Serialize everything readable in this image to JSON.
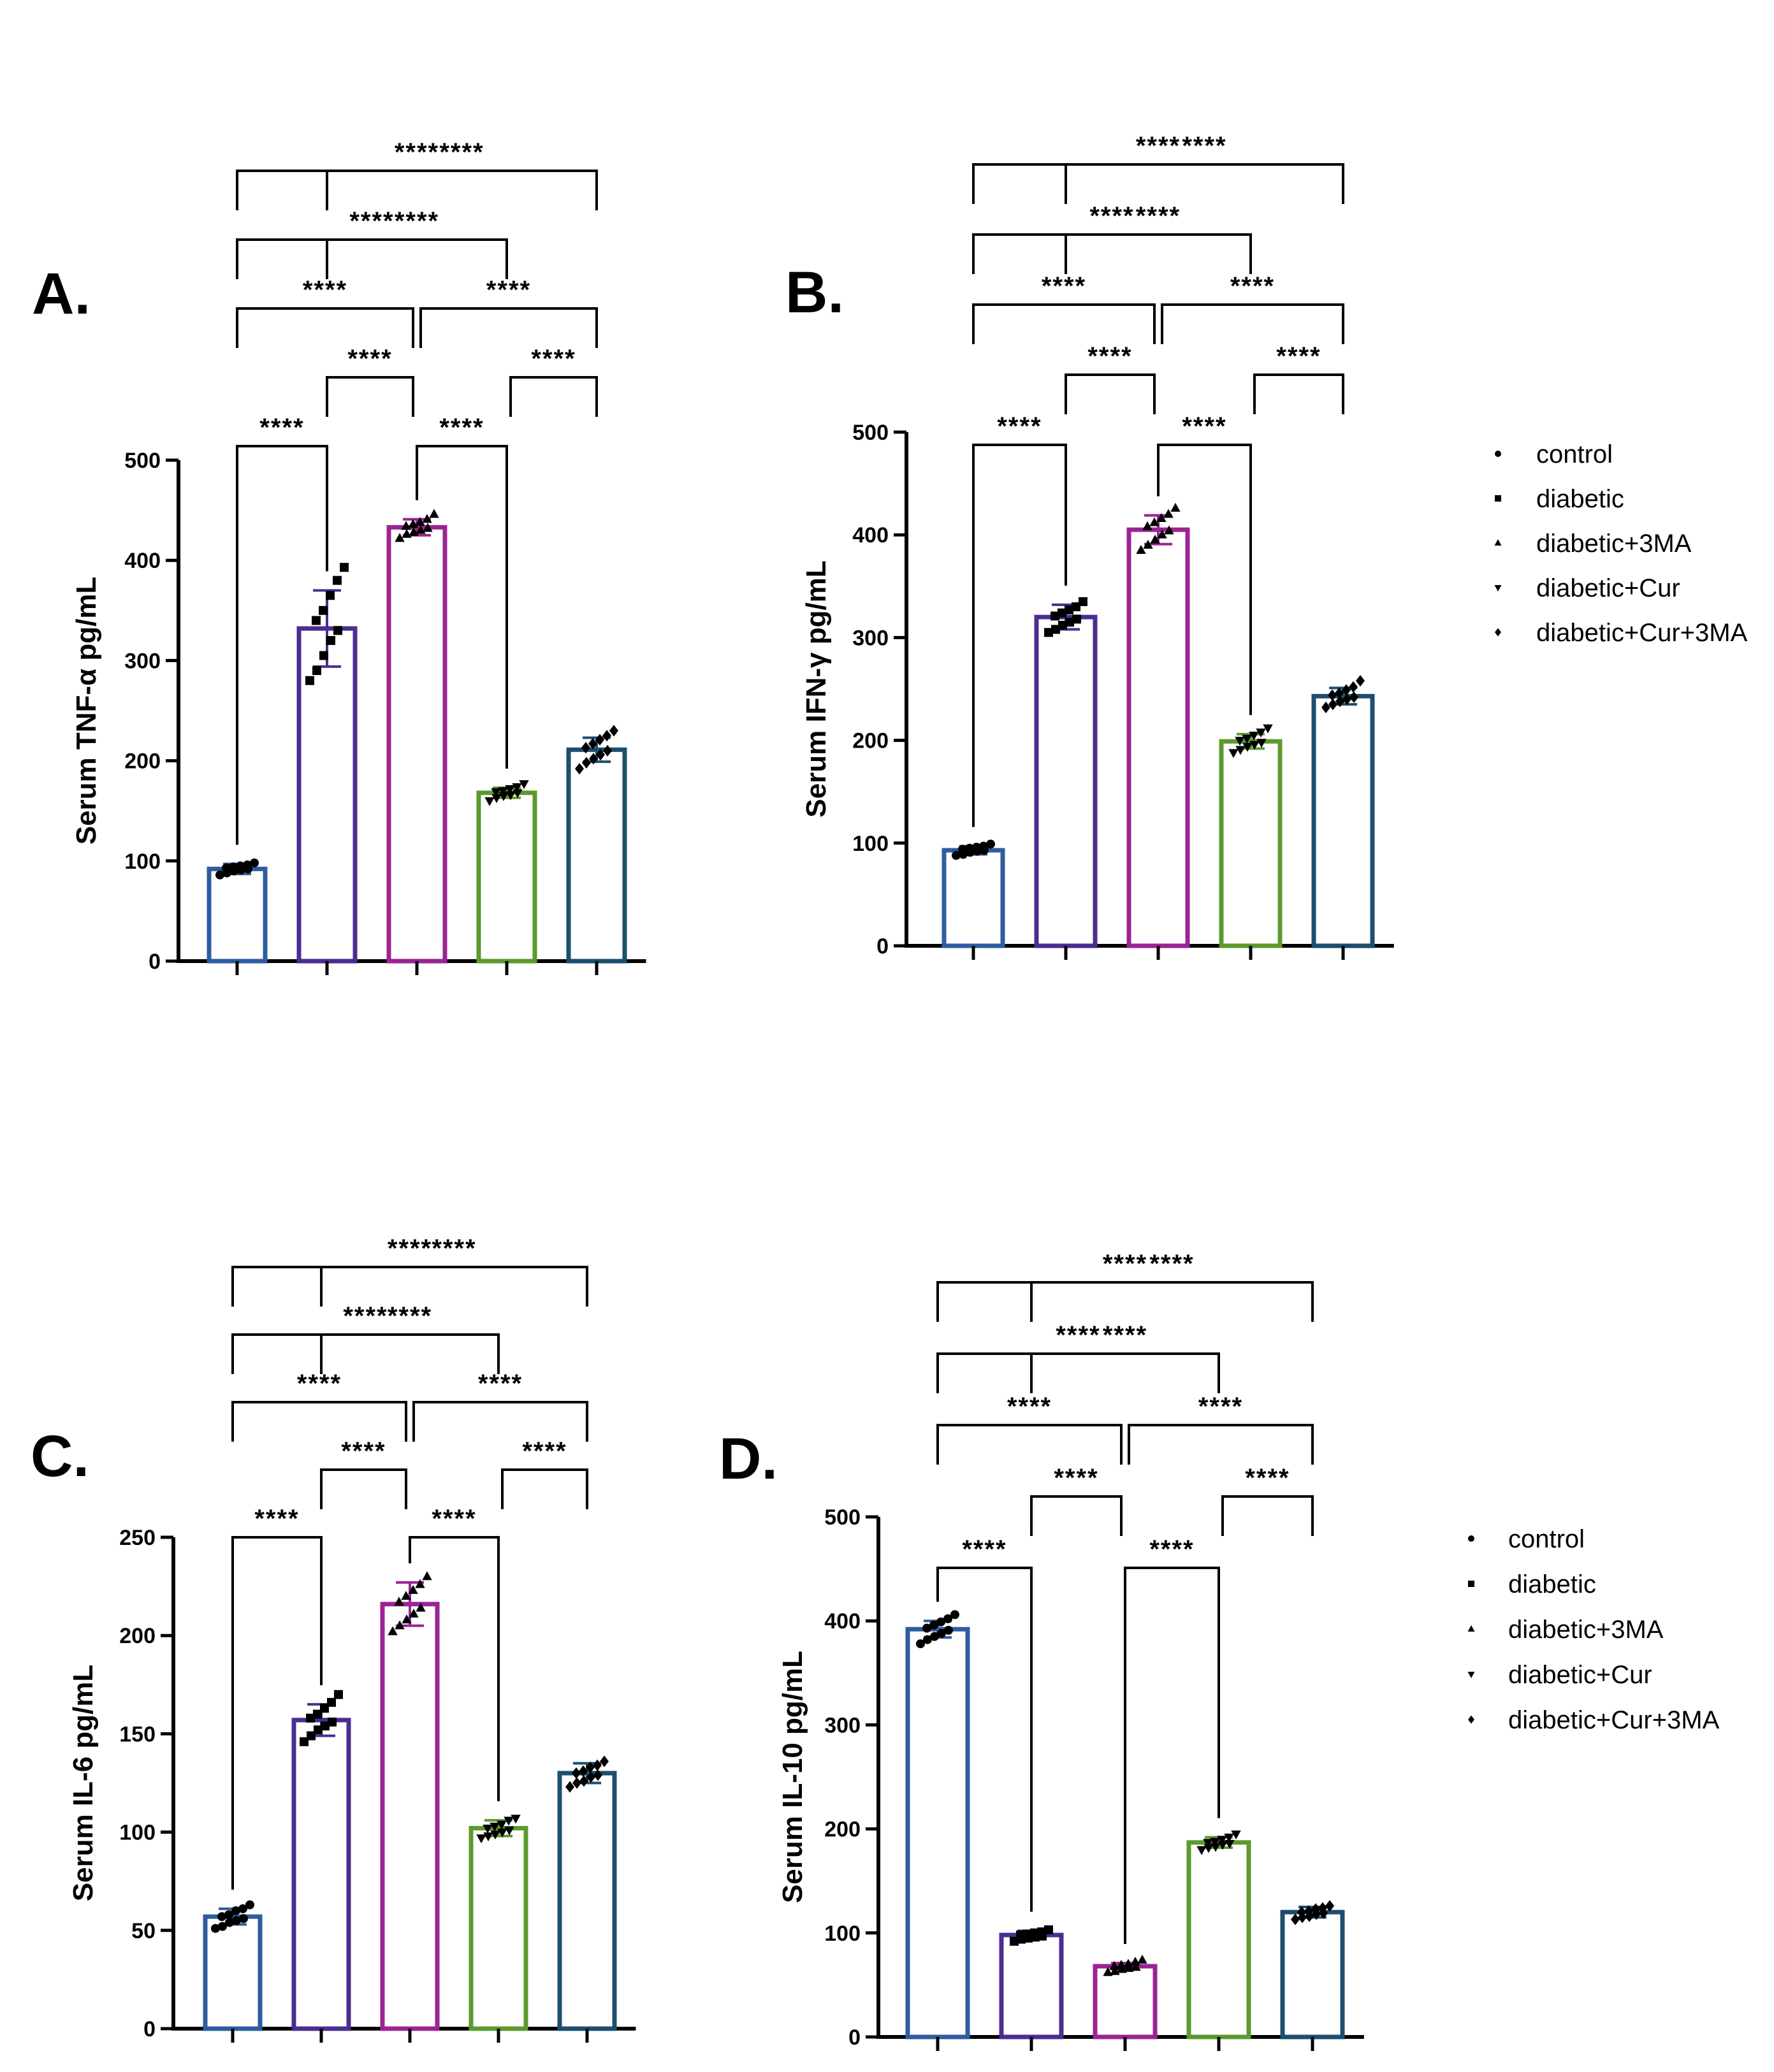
{
  "chart_data": [
    {
      "type": "bar",
      "panel_label": "A.",
      "ylabel": "Serum TNF-α pg/mL",
      "ylim": [
        0,
        500
      ],
      "yticks": [
        0,
        100,
        200,
        300,
        400,
        500
      ],
      "categories": [
        "control",
        "diabetic",
        "diabetic+3MA",
        "diabetic+Cur",
        "diabetic+Cur+3MA"
      ],
      "values": [
        92,
        332,
        433,
        168,
        211
      ],
      "sd": [
        5,
        38,
        8,
        5,
        12
      ],
      "points": [
        [
          86,
          88,
          90,
          91,
          92,
          93,
          94,
          95,
          96,
          98
        ],
        [
          280,
          290,
          305,
          320,
          330,
          340,
          350,
          365,
          380,
          393
        ],
        [
          422,
          426,
          428,
          430,
          432,
          434,
          436,
          438,
          441,
          446
        ],
        [
          160,
          163,
          165,
          166,
          168,
          169,
          170,
          172,
          174,
          177
        ],
        [
          192,
          198,
          202,
          206,
          210,
          213,
          217,
          221,
          225,
          230
        ]
      ],
      "comparisons": [
        {
          "pair": [
            0,
            1
          ],
          "label": "****"
        },
        {
          "pair": [
            2,
            3
          ],
          "label": "****"
        },
        {
          "pair": [
            1,
            2
          ],
          "label": "****"
        },
        {
          "pair": [
            3,
            4
          ],
          "label": "****"
        },
        {
          "pair": [
            0,
            2
          ],
          "label": "****"
        },
        {
          "pair": [
            2,
            4
          ],
          "label": "****"
        },
        {
          "pair": [
            1,
            3
          ],
          "label": "****"
        },
        {
          "pair": [
            0,
            3
          ],
          "label": "****"
        },
        {
          "pair": [
            1,
            4
          ],
          "label": "****"
        },
        {
          "pair": [
            0,
            4
          ],
          "label": "****"
        }
      ]
    },
    {
      "type": "bar",
      "panel_label": "B.",
      "ylabel": "Serum IFN-γ pg/mL",
      "ylim": [
        0,
        500
      ],
      "yticks": [
        0,
        100,
        200,
        300,
        400,
        500
      ],
      "categories": [
        "control",
        "diabetic",
        "diabetic+3MA",
        "diabetic+Cur",
        "diabetic+Cur+3MA"
      ],
      "values": [
        93,
        320,
        405,
        199,
        243
      ],
      "sd": [
        4,
        12,
        14,
        7,
        8
      ],
      "points": [
        [
          88,
          89,
          91,
          92,
          93,
          94,
          95,
          96,
          97,
          99
        ],
        [
          305,
          308,
          312,
          315,
          318,
          321,
          324,
          327,
          330,
          335
        ],
        [
          385,
          390,
          395,
          400,
          404,
          408,
          412,
          416,
          420,
          426
        ],
        [
          188,
          191,
          194,
          196,
          198,
          200,
          202,
          205,
          208,
          212
        ],
        [
          232,
          235,
          238,
          240,
          242,
          244,
          246,
          249,
          252,
          258
        ]
      ],
      "comparisons": [
        {
          "pair": [
            0,
            1
          ],
          "label": "****"
        },
        {
          "pair": [
            2,
            3
          ],
          "label": "****"
        },
        {
          "pair": [
            1,
            2
          ],
          "label": "****"
        },
        {
          "pair": [
            3,
            4
          ],
          "label": "****"
        },
        {
          "pair": [
            0,
            2
          ],
          "label": "****"
        },
        {
          "pair": [
            2,
            4
          ],
          "label": "****"
        },
        {
          "pair": [
            1,
            3
          ],
          "label": "****"
        },
        {
          "pair": [
            0,
            3
          ],
          "label": "****"
        },
        {
          "pair": [
            1,
            4
          ],
          "label": "****"
        },
        {
          "pair": [
            0,
            4
          ],
          "label": "****"
        }
      ]
    },
    {
      "type": "bar",
      "panel_label": "C.",
      "ylabel": "Serum IL-6 pg/mL",
      "ylim": [
        0,
        250
      ],
      "yticks": [
        0,
        50,
        100,
        150,
        200,
        250
      ],
      "categories": [
        "control",
        "diabetic",
        "diabetic+3MA",
        "diabetic+Cur",
        "diabetic+Cur+3MA"
      ],
      "values": [
        57,
        157,
        216,
        102,
        130
      ],
      "sd": [
        4,
        8,
        11,
        4,
        5
      ],
      "points": [
        [
          51,
          52,
          54,
          55,
          56,
          57,
          58,
          60,
          61,
          63
        ],
        [
          146,
          149,
          152,
          154,
          156,
          158,
          160,
          163,
          166,
          170
        ],
        [
          202,
          205,
          208,
          211,
          214,
          217,
          220,
          223,
          226,
          230
        ],
        [
          97,
          98,
          99,
          100,
          101,
          102,
          103,
          104,
          106,
          107
        ],
        [
          123,
          125,
          126,
          128,
          129,
          130,
          131,
          133,
          134,
          136
        ]
      ],
      "comparisons": [
        {
          "pair": [
            0,
            1
          ],
          "label": "****"
        },
        {
          "pair": [
            2,
            3
          ],
          "label": "****"
        },
        {
          "pair": [
            1,
            2
          ],
          "label": "****"
        },
        {
          "pair": [
            3,
            4
          ],
          "label": "****"
        },
        {
          "pair": [
            0,
            2
          ],
          "label": "****"
        },
        {
          "pair": [
            2,
            4
          ],
          "label": "****"
        },
        {
          "pair": [
            1,
            3
          ],
          "label": "****"
        },
        {
          "pair": [
            0,
            3
          ],
          "label": "****"
        },
        {
          "pair": [
            1,
            4
          ],
          "label": "****"
        },
        {
          "pair": [
            0,
            4
          ],
          "label": "****"
        }
      ]
    },
    {
      "type": "bar",
      "panel_label": "D.",
      "ylabel": "Serum IL-10 pg/mL",
      "ylim": [
        0,
        500
      ],
      "yticks": [
        0,
        100,
        200,
        300,
        400,
        500
      ],
      "categories": [
        "control",
        "diabetic",
        "diabetic+3MA",
        "diabetic+Cur",
        "diabetic+Cur+3MA"
      ],
      "values": [
        392,
        98,
        68,
        187,
        120
      ],
      "sd": [
        8,
        4,
        3,
        5,
        5
      ],
      "points": [
        [
          378,
          382,
          385,
          388,
          391,
          393,
          396,
          399,
          402,
          406
        ],
        [
          92,
          94,
          95,
          96,
          97,
          98,
          99,
          100,
          101,
          103
        ],
        [
          62,
          63,
          65,
          66,
          67,
          68,
          69,
          70,
          72,
          74
        ],
        [
          180,
          182,
          183,
          185,
          186,
          187,
          188,
          190,
          192,
          195
        ],
        [
          113,
          115,
          116,
          118,
          119,
          120,
          121,
          123,
          124,
          126
        ]
      ],
      "comparisons": [
        {
          "pair": [
            0,
            1
          ],
          "label": "****"
        },
        {
          "pair": [
            2,
            3
          ],
          "label": "****"
        },
        {
          "pair": [
            1,
            2
          ],
          "label": "****"
        },
        {
          "pair": [
            3,
            4
          ],
          "label": "****"
        },
        {
          "pair": [
            0,
            2
          ],
          "label": "****"
        },
        {
          "pair": [
            2,
            4
          ],
          "label": "****"
        },
        {
          "pair": [
            1,
            3
          ],
          "label": "****"
        },
        {
          "pair": [
            0,
            3
          ],
          "label": "****"
        },
        {
          "pair": [
            1,
            4
          ],
          "label": "****"
        },
        {
          "pair": [
            0,
            4
          ],
          "label": "****"
        }
      ]
    }
  ],
  "legend": {
    "items": [
      {
        "label": "control",
        "marker": "circle"
      },
      {
        "label": "diabetic",
        "marker": "square"
      },
      {
        "label": "diabetic+3MA",
        "marker": "triangle-up"
      },
      {
        "label": "diabetic+Cur",
        "marker": "triangle-down"
      },
      {
        "label": "diabetic+Cur+3MA",
        "marker": "diamond"
      }
    ]
  },
  "colors": {
    "bars": [
      "#2e5da0",
      "#4b2d91",
      "#9b2394",
      "#5c9a2e",
      "#1c4e6e"
    ],
    "error_bars": [
      "#2e5da0",
      "#4b2d91",
      "#9b2394",
      "#5c9a2e",
      "#1c4e6e"
    ],
    "points": "#000000",
    "axes": "#000000"
  }
}
